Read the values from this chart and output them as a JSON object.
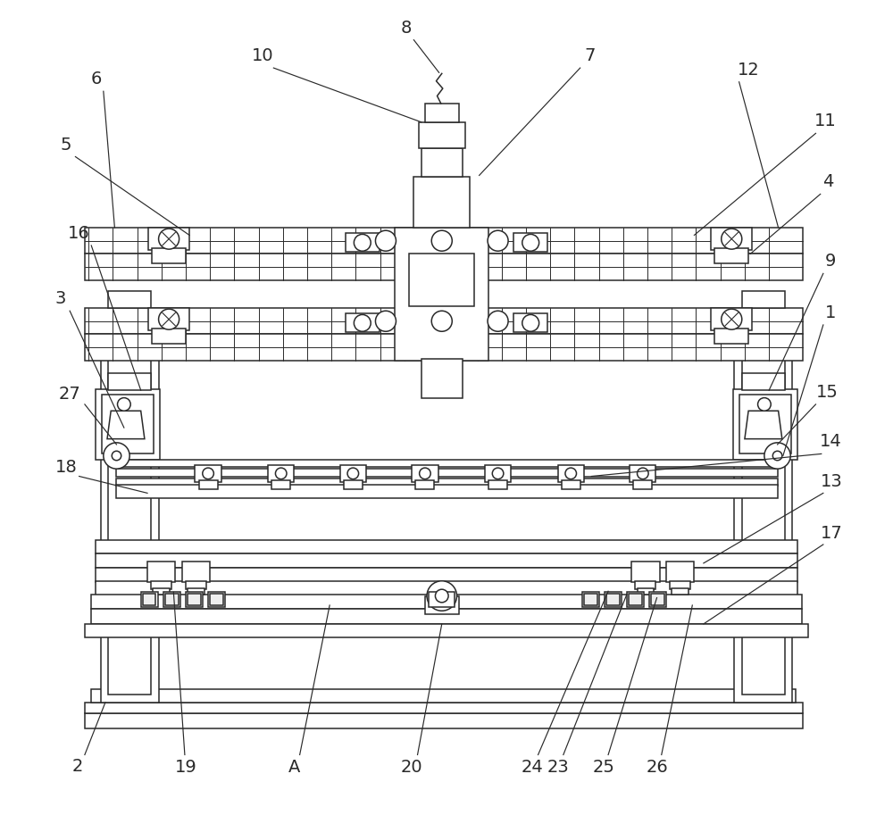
{
  "bg_color": "#ffffff",
  "line_color": "#2a2a2a",
  "lw": 1.1,
  "fig_width": 10.0,
  "fig_height": 9.32
}
